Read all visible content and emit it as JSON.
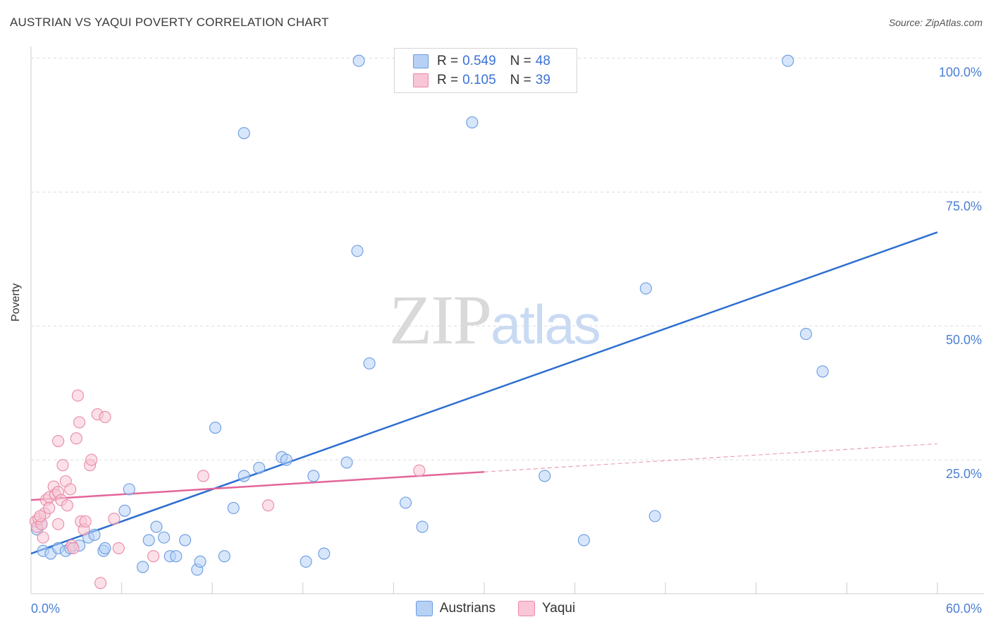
{
  "title": "AUSTRIAN VS YAQUI POVERTY CORRELATION CHART",
  "source": "Source: ZipAtlas.com",
  "watermark": {
    "part1": "ZIP",
    "part2": "atlas"
  },
  "legend": [
    {
      "r_label": "R =",
      "r": "0.549",
      "n_label": "N =",
      "n": "48",
      "color": "#b7d1f5",
      "border": "#6a9be0"
    },
    {
      "r_label": "R =",
      "r": "0.105",
      "n_label": "N =",
      "n": "39",
      "color": "#f8c6d6",
      "border": "#e98aa8"
    }
  ],
  "bottom_legend": [
    {
      "label": "Austrians",
      "color": "#b7d1f5",
      "border": "#6a9be0"
    },
    {
      "label": "Yaqui",
      "color": "#f8c6d6",
      "border": "#e98aa8"
    }
  ],
  "chart_data": {
    "type": "scatter",
    "title": "AUSTRIAN VS YAQUI POVERTY CORRELATION CHART",
    "xlabel": "",
    "ylabel": "Poverty",
    "xlim": [
      0,
      60
    ],
    "ylim": [
      0,
      100
    ],
    "x_tick_labels": [
      "0.0%",
      "60.0%"
    ],
    "y_ticks": [
      25,
      50,
      75,
      100
    ],
    "y_tick_labels": [
      "25.0%",
      "50.0%",
      "75.0%",
      "100.0%"
    ],
    "grid": true,
    "series": [
      {
        "name": "Austrians",
        "color": "#6a9be0",
        "fill": "#b7d1f5",
        "trend": {
          "x": [
            0,
            60
          ],
          "y": [
            7.5,
            67.5
          ],
          "dashed_from": null
        },
        "points": [
          [
            0.4,
            12.0
          ],
          [
            0.7,
            13.0
          ],
          [
            0.8,
            8.0
          ],
          [
            1.3,
            7.5
          ],
          [
            1.8,
            8.5
          ],
          [
            2.3,
            8.0
          ],
          [
            2.6,
            8.5
          ],
          [
            3.2,
            9.0
          ],
          [
            3.8,
            10.5
          ],
          [
            4.8,
            8.0
          ],
          [
            4.9,
            8.5
          ],
          [
            4.2,
            11.0
          ],
          [
            6.2,
            15.5
          ],
          [
            6.5,
            19.5
          ],
          [
            7.4,
            5.0
          ],
          [
            7.8,
            10.0
          ],
          [
            8.3,
            12.5
          ],
          [
            8.8,
            10.5
          ],
          [
            9.2,
            7.0
          ],
          [
            9.6,
            7.0
          ],
          [
            10.2,
            10.0
          ],
          [
            11.0,
            4.5
          ],
          [
            11.2,
            6.0
          ],
          [
            12.2,
            31.0
          ],
          [
            12.8,
            7.0
          ],
          [
            13.4,
            16.0
          ],
          [
            14.1,
            22.0
          ],
          [
            14.1,
            86.0
          ],
          [
            15.1,
            23.5
          ],
          [
            16.6,
            25.5
          ],
          [
            16.9,
            25.0
          ],
          [
            18.7,
            22.0
          ],
          [
            18.2,
            6.0
          ],
          [
            19.4,
            7.5
          ],
          [
            20.9,
            24.5
          ],
          [
            21.6,
            64.0
          ],
          [
            21.7,
            99.5
          ],
          [
            22.4,
            43.0
          ],
          [
            24.8,
            17.0
          ],
          [
            25.9,
            12.5
          ],
          [
            29.2,
            88.0
          ],
          [
            34.0,
            22.0
          ],
          [
            36.6,
            10.0
          ],
          [
            40.7,
            57.0
          ],
          [
            41.3,
            14.5
          ],
          [
            50.1,
            99.5
          ],
          [
            51.3,
            48.5
          ],
          [
            52.4,
            41.5
          ]
        ]
      },
      {
        "name": "Yaqui",
        "color": "#e98aa8",
        "fill": "#f8c6d6",
        "trend": {
          "x": [
            0,
            60
          ],
          "y": [
            17.5,
            28.0
          ],
          "dashed_from": 30
        },
        "points": [
          [
            0.3,
            13.5
          ],
          [
            0.4,
            12.5
          ],
          [
            0.5,
            14.0
          ],
          [
            0.7,
            13.0
          ],
          [
            0.8,
            10.5
          ],
          [
            0.9,
            15.0
          ],
          [
            1.0,
            17.5
          ],
          [
            1.2,
            18.0
          ],
          [
            1.2,
            16.0
          ],
          [
            1.5,
            20.0
          ],
          [
            1.6,
            18.5
          ],
          [
            1.8,
            19.0
          ],
          [
            1.8,
            13.0
          ],
          [
            1.8,
            28.5
          ],
          [
            2.0,
            17.5
          ],
          [
            2.1,
            24.0
          ],
          [
            2.3,
            21.0
          ],
          [
            2.4,
            16.5
          ],
          [
            2.6,
            19.5
          ],
          [
            2.7,
            9.0
          ],
          [
            2.8,
            8.5
          ],
          [
            3.0,
            29.0
          ],
          [
            3.1,
            37.0
          ],
          [
            3.2,
            32.0
          ],
          [
            3.3,
            13.5
          ],
          [
            3.5,
            12.0
          ],
          [
            3.6,
            13.5
          ],
          [
            3.9,
            24.0
          ],
          [
            4.0,
            25.0
          ],
          [
            4.4,
            33.5
          ],
          [
            4.6,
            2.0
          ],
          [
            4.9,
            33.0
          ],
          [
            5.5,
            14.0
          ],
          [
            5.8,
            8.5
          ],
          [
            8.1,
            7.0
          ],
          [
            11.4,
            22.0
          ],
          [
            15.7,
            16.5
          ],
          [
            25.7,
            23.0
          ],
          [
            0.6,
            14.5
          ]
        ]
      }
    ]
  }
}
